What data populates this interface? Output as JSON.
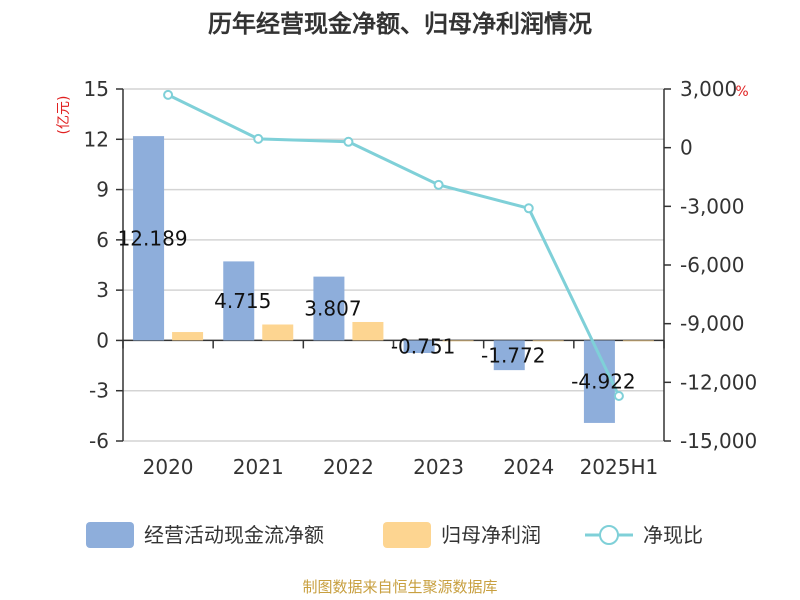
{
  "chart_data": {
    "type": "bar",
    "title": "历年经营现金净额、归母净利润情况",
    "categories": [
      "2020",
      "2021",
      "2022",
      "2023",
      "2024",
      "2025H1"
    ],
    "left_axis": {
      "unit": "(亿元)",
      "ylim": [
        -6,
        15
      ],
      "ticks": [
        15,
        12,
        9,
        6,
        3,
        0,
        -3,
        -6
      ]
    },
    "right_axis": {
      "unit": "%",
      "ylim": [
        -15000,
        3000
      ],
      "ticks": [
        "3,000",
        "0",
        "-3,000",
        "-6,000",
        "-9,000",
        "-12,000",
        "-15,000"
      ],
      "tick_values": [
        3000,
        0,
        -3000,
        -6000,
        -9000,
        -12000,
        -15000
      ]
    },
    "series": [
      {
        "name": "经营活动现金流净额",
        "type": "bar",
        "axis": "left",
        "color": "#8eaedb",
        "values": [
          12.189,
          4.715,
          3.807,
          -0.751,
          -1.772,
          -4.922
        ],
        "labels": [
          "12.189",
          "4.715",
          "3.807",
          "-0.751",
          "-1.772",
          "-4.922"
        ]
      },
      {
        "name": "归母净利润",
        "type": "bar",
        "axis": "left",
        "color": "#fdd591",
        "values": [
          0.5,
          0.95,
          1.1,
          -0.05,
          -0.05,
          -0.05
        ]
      },
      {
        "name": "净现比",
        "type": "line",
        "axis": "right",
        "color": "#7fd0d8",
        "values": [
          2700,
          450,
          300,
          -1900,
          -3100,
          -12700
        ]
      }
    ],
    "grid": true,
    "legend": "bottom"
  },
  "source_text": "制图数据来自恒生聚源数据库"
}
